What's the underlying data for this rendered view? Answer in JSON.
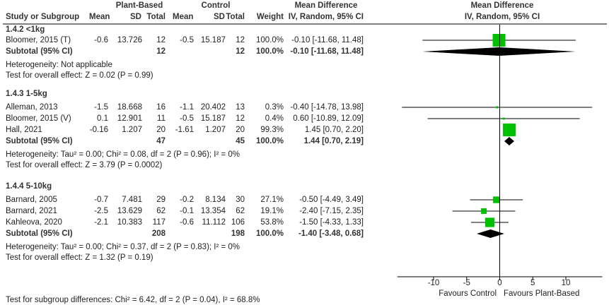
{
  "chart_data": {
    "type": "forest",
    "header": {
      "group_plant": "Plant-Based",
      "group_control": "Control",
      "group_md_table": "Mean Difference",
      "group_md_plot": "Mean Difference",
      "col_study": "Study or Subgroup",
      "col_mean1": "Mean",
      "col_sd1": "SD",
      "col_total1": "Total",
      "col_mean2": "Mean",
      "col_sd2": "SD",
      "col_total2": "Total",
      "col_weight": "Weight",
      "col_ci": "IV, Random, 95% CI",
      "plot_method": "IV, Random, 95% CI"
    },
    "subgroups": [
      {
        "label": "1.4.2 <1kg",
        "studies": [
          {
            "name": "Bloomer, 2015 (T)",
            "mean1": "-0.6",
            "sd1": "13.726",
            "n1": "12",
            "mean2": "-0.5",
            "sd2": "15.187",
            "n2": "12",
            "weight": "100.0%",
            "ci_text": "-0.10 [-11.68, 11.48]",
            "md": -0.1,
            "lo": -11.68,
            "hi": 11.48,
            "w": 100.0
          }
        ],
        "subtotal": {
          "label": "Subtotal (95% CI)",
          "n1": "12",
          "n2": "12",
          "weight": "100.0%",
          "ci_text": "-0.10 [-11.68, 11.48]",
          "md": -0.1,
          "lo": -11.68,
          "hi": 11.48
        },
        "heterogeneity": "Heterogeneity: Not applicable",
        "overall": "Test for overall effect: Z = 0.02 (P = 0.99)"
      },
      {
        "label": "1.4.3 1-5kg",
        "studies": [
          {
            "name": "Alleman, 2013",
            "mean1": "-1.5",
            "sd1": "18.668",
            "n1": "16",
            "mean2": "-1.1",
            "sd2": "20.402",
            "n2": "13",
            "weight": "0.3%",
            "ci_text": "-0.40 [-14.78, 13.98]",
            "md": -0.4,
            "lo": -14.78,
            "hi": 13.98,
            "w": 0.3
          },
          {
            "name": "Bloomer, 2015 (V)",
            "mean1": "0.1",
            "sd1": "12.901",
            "n1": "11",
            "mean2": "-0.5",
            "sd2": "15.187",
            "n2": "12",
            "weight": "0.4%",
            "ci_text": "0.60 [-10.89, 12.09]",
            "md": 0.6,
            "lo": -10.89,
            "hi": 12.09,
            "w": 0.4
          },
          {
            "name": "Hall, 2021",
            "mean1": "-0.16",
            "sd1": "1.207",
            "n1": "20",
            "mean2": "-1.61",
            "sd2": "1.207",
            "n2": "20",
            "weight": "99.3%",
            "ci_text": "1.45 [0.70, 2.20]",
            "md": 1.45,
            "lo": 0.7,
            "hi": 2.2,
            "w": 99.3
          }
        ],
        "subtotal": {
          "label": "Subtotal (95% CI)",
          "n1": "47",
          "n2": "45",
          "weight": "100.0%",
          "ci_text": "1.44 [0.70, 2.19]",
          "md": 1.44,
          "lo": 0.7,
          "hi": 2.19
        },
        "heterogeneity": "Heterogeneity: Tau² = 0.00; Chi² = 0.08, df = 2 (P = 0.96); I² = 0%",
        "overall": "Test for overall effect: Z = 3.79 (P = 0.0002)"
      },
      {
        "label": "1.4.4 5-10kg",
        "studies": [
          {
            "name": "Barnard, 2005",
            "mean1": "-0.7",
            "sd1": "7.481",
            "n1": "29",
            "mean2": "-0.2",
            "sd2": "8.134",
            "n2": "30",
            "weight": "27.1%",
            "ci_text": "-0.50 [-4.49, 3.49]",
            "md": -0.5,
            "lo": -4.49,
            "hi": 3.49,
            "w": 27.1
          },
          {
            "name": "Barnard, 2021",
            "mean1": "-2.5",
            "sd1": "13.629",
            "n1": "62",
            "mean2": "-0.1",
            "sd2": "13.354",
            "n2": "62",
            "weight": "19.1%",
            "ci_text": "-2.40 [-7.15, 2.35]",
            "md": -2.4,
            "lo": -7.15,
            "hi": 2.35,
            "w": 19.1
          },
          {
            "name": "Kahleova, 2020",
            "mean1": "-2.1",
            "sd1": "10.383",
            "n1": "117",
            "mean2": "-0.6",
            "sd2": "11.112",
            "n2": "106",
            "weight": "53.8%",
            "ci_text": "-1.50 [-4.33, 1.33]",
            "md": -1.5,
            "lo": -4.33,
            "hi": 1.33,
            "w": 53.8
          }
        ],
        "subtotal": {
          "label": "Subtotal (95% CI)",
          "n1": "208",
          "n2": "198",
          "weight": "100.0%",
          "ci_text": "-1.40 [-3.48, 0.68]",
          "md": -1.4,
          "lo": -3.48,
          "hi": 0.68
        },
        "heterogeneity": "Heterogeneity: Tau² = 0.00; Chi² = 0.37, df = 2 (P = 0.83); I² = 0%",
        "overall": "Test for overall effect: Z = 1.32 (P = 0.19)"
      }
    ],
    "subgroup_test": "Test for subgroup differences: Chi² = 6.42, df = 2 (P = 0.04), I² = 68.8%",
    "x_axis": {
      "ticks": [
        -10,
        -5,
        0,
        5,
        10
      ],
      "tick_labels": [
        "-10",
        "-5",
        "0",
        "5",
        "10"
      ],
      "range": [
        -15.5,
        15.5
      ]
    },
    "favours_left": "Favours Control",
    "favours_right": "Favours Plant-Based",
    "colors": {
      "square": "#00c000",
      "diamond": "#000000",
      "line": "#000000"
    }
  }
}
